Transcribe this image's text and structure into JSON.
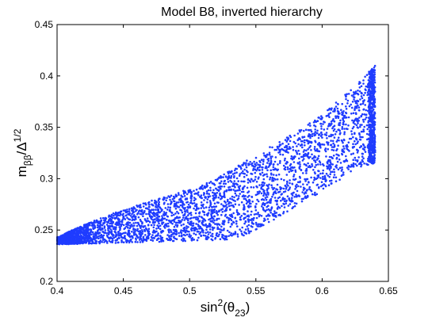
{
  "chart_data": {
    "type": "scatter",
    "title": "Model B8, inverted hierarchy",
    "xlabel": {
      "base": "sin",
      "sup": "2",
      "open": "(θ",
      "sub": "23",
      "close": ")"
    },
    "ylabel": {
      "base": "m",
      "sub": "ββ",
      "mid": "/Δ",
      "sup": "1/2"
    },
    "xlim": [
      0.4,
      0.65
    ],
    "ylim": [
      0.2,
      0.45
    ],
    "xticks": [
      "0.4",
      "0.45",
      "0.5",
      "0.55",
      "0.6",
      "0.65"
    ],
    "yticks": [
      "0.2",
      "0.25",
      "0.3",
      "0.35",
      "0.4",
      "0.45"
    ],
    "grid": false,
    "marker_color": "#1f3cff",
    "series": [
      {
        "approx_point_count": 4000,
        "region_lower_boundary": [
          [
            0.4,
            0.236
          ],
          [
            0.43,
            0.237
          ],
          [
            0.46,
            0.238
          ],
          [
            0.49,
            0.239
          ],
          [
            0.52,
            0.24
          ],
          [
            0.535,
            0.241
          ],
          [
            0.55,
            0.25
          ],
          [
            0.57,
            0.265
          ],
          [
            0.59,
            0.28
          ],
          [
            0.61,
            0.295
          ],
          [
            0.625,
            0.31
          ],
          [
            0.64,
            0.315
          ]
        ],
        "region_upper_boundary": [
          [
            0.4,
            0.243
          ],
          [
            0.42,
            0.255
          ],
          [
            0.45,
            0.27
          ],
          [
            0.48,
            0.282
          ],
          [
            0.5,
            0.29
          ],
          [
            0.52,
            0.3
          ],
          [
            0.55,
            0.323
          ],
          [
            0.58,
            0.345
          ],
          [
            0.6,
            0.362
          ],
          [
            0.62,
            0.385
          ],
          [
            0.64,
            0.41
          ]
        ]
      }
    ]
  }
}
